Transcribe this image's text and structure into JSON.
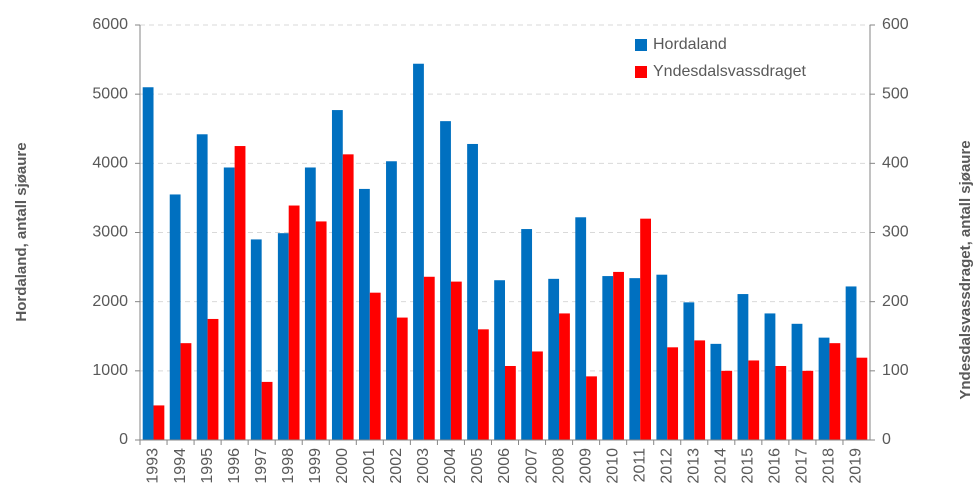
{
  "chart_data": {
    "type": "bar",
    "y_label": "Hordaland, antall sjøaure",
    "y2_label": "Yndesdalsvassdraget, antall sjøaure",
    "categories": [
      "1993",
      "1994",
      "1995",
      "1996",
      "1997",
      "1998",
      "1999",
      "2000",
      "2001",
      "2002",
      "2003",
      "2004",
      "2005",
      "2006",
      "2007",
      "2008",
      "2009",
      "2010",
      "2011",
      "2012",
      "2013",
      "2014",
      "2015",
      "2016",
      "2017",
      "2018",
      "2019"
    ],
    "series": [
      {
        "name": "Hordaland",
        "color": "#0070c0",
        "values": [
          5100,
          3550,
          4420,
          3940,
          2900,
          2990,
          3940,
          4770,
          3630,
          4030,
          5440,
          4610,
          4280,
          2310,
          3050,
          2330,
          3220,
          2370,
          2340,
          2390,
          1990,
          1390,
          2110,
          1830,
          1680,
          1480,
          2220
        ]
      },
      {
        "name": "Yndesdalsvassdraget",
        "color": "#ff0000",
        "axis": "y2",
        "values": [
          50,
          140,
          175,
          425,
          84,
          339,
          316,
          413,
          213,
          177,
          236,
          229,
          160,
          107,
          128,
          183,
          92,
          243,
          320,
          134,
          144,
          100,
          115,
          107,
          100,
          140,
          119
        ]
      }
    ],
    "ylim": [
      0,
      6000
    ],
    "yticks": [
      0,
      1000,
      2000,
      3000,
      4000,
      5000,
      6000
    ],
    "y2lim": [
      0,
      600
    ],
    "y2ticks": [
      0,
      100,
      200,
      300,
      400,
      500,
      600
    ],
    "grid": true,
    "legend": "upper right"
  }
}
